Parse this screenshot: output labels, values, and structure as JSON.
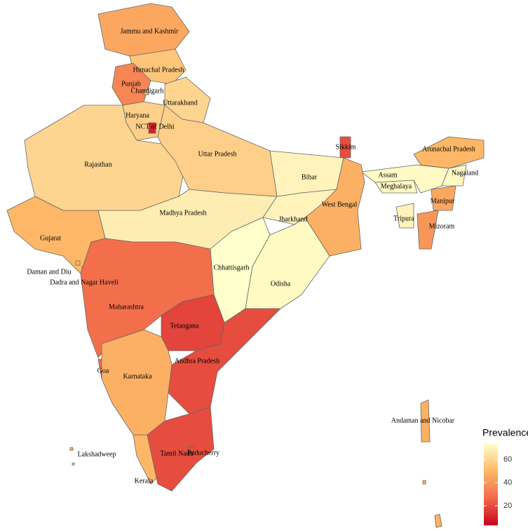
{
  "map": {
    "legend": {
      "title": "Prevalence",
      "range": [
        3,
        74
      ],
      "ticks": [
        20,
        40,
        60
      ],
      "colors": [
        "#c80021",
        "#f26b4a",
        "#fdb867",
        "#ffffcc"
      ]
    },
    "regions": [
      {
        "name": "Jammu and Kashmir",
        "value": 45
      },
      {
        "name": "Himachal Pradesh",
        "value": 55
      },
      {
        "name": "Punjab",
        "value": 35
      },
      {
        "name": "Chandigarh",
        "value": 55
      },
      {
        "name": "Uttarakhand",
        "value": 60
      },
      {
        "name": "Haryana",
        "value": 58
      },
      {
        "name": "NCT of Delhi",
        "value": 10
      },
      {
        "name": "Rajasthan",
        "value": 60
      },
      {
        "name": "Uttar Pradesh",
        "value": 58
      },
      {
        "name": "Sikkim",
        "value": 20
      },
      {
        "name": "Arunachal Pradesh",
        "value": 50
      },
      {
        "name": "Assam",
        "value": 72
      },
      {
        "name": "Meghalaya",
        "value": 72
      },
      {
        "name": "Nagaland",
        "value": 72
      },
      {
        "name": "Manipur",
        "value": 45
      },
      {
        "name": "Mizoram",
        "value": 40
      },
      {
        "name": "Tripura",
        "value": 70
      },
      {
        "name": "Bihar",
        "value": 70
      },
      {
        "name": "West Bengal",
        "value": 48
      },
      {
        "name": "Jharkhand",
        "value": 70
      },
      {
        "name": "Madhya Pradesh",
        "value": 68
      },
      {
        "name": "Gujarat",
        "value": 50
      },
      {
        "name": "Daman and Diu",
        "value": 50
      },
      {
        "name": "Dadra and Nagar Haveli",
        "value": 50
      },
      {
        "name": "Chhattisgarh",
        "value": 74
      },
      {
        "name": "Odisha",
        "value": 72
      },
      {
        "name": "Maharashtra",
        "value": 28
      },
      {
        "name": "Telangana",
        "value": 18
      },
      {
        "name": "Andhra Pradesh",
        "value": 20
      },
      {
        "name": "Goa",
        "value": 28
      },
      {
        "name": "Karnataka",
        "value": 48
      },
      {
        "name": "Kerala",
        "value": 50
      },
      {
        "name": "Tamil Nadu",
        "value": 20
      },
      {
        "name": "Puducherry",
        "value": 20
      },
      {
        "name": "Lakshadweep",
        "value": 50
      },
      {
        "name": "Andaman and Nicobar",
        "value": 48
      }
    ]
  }
}
